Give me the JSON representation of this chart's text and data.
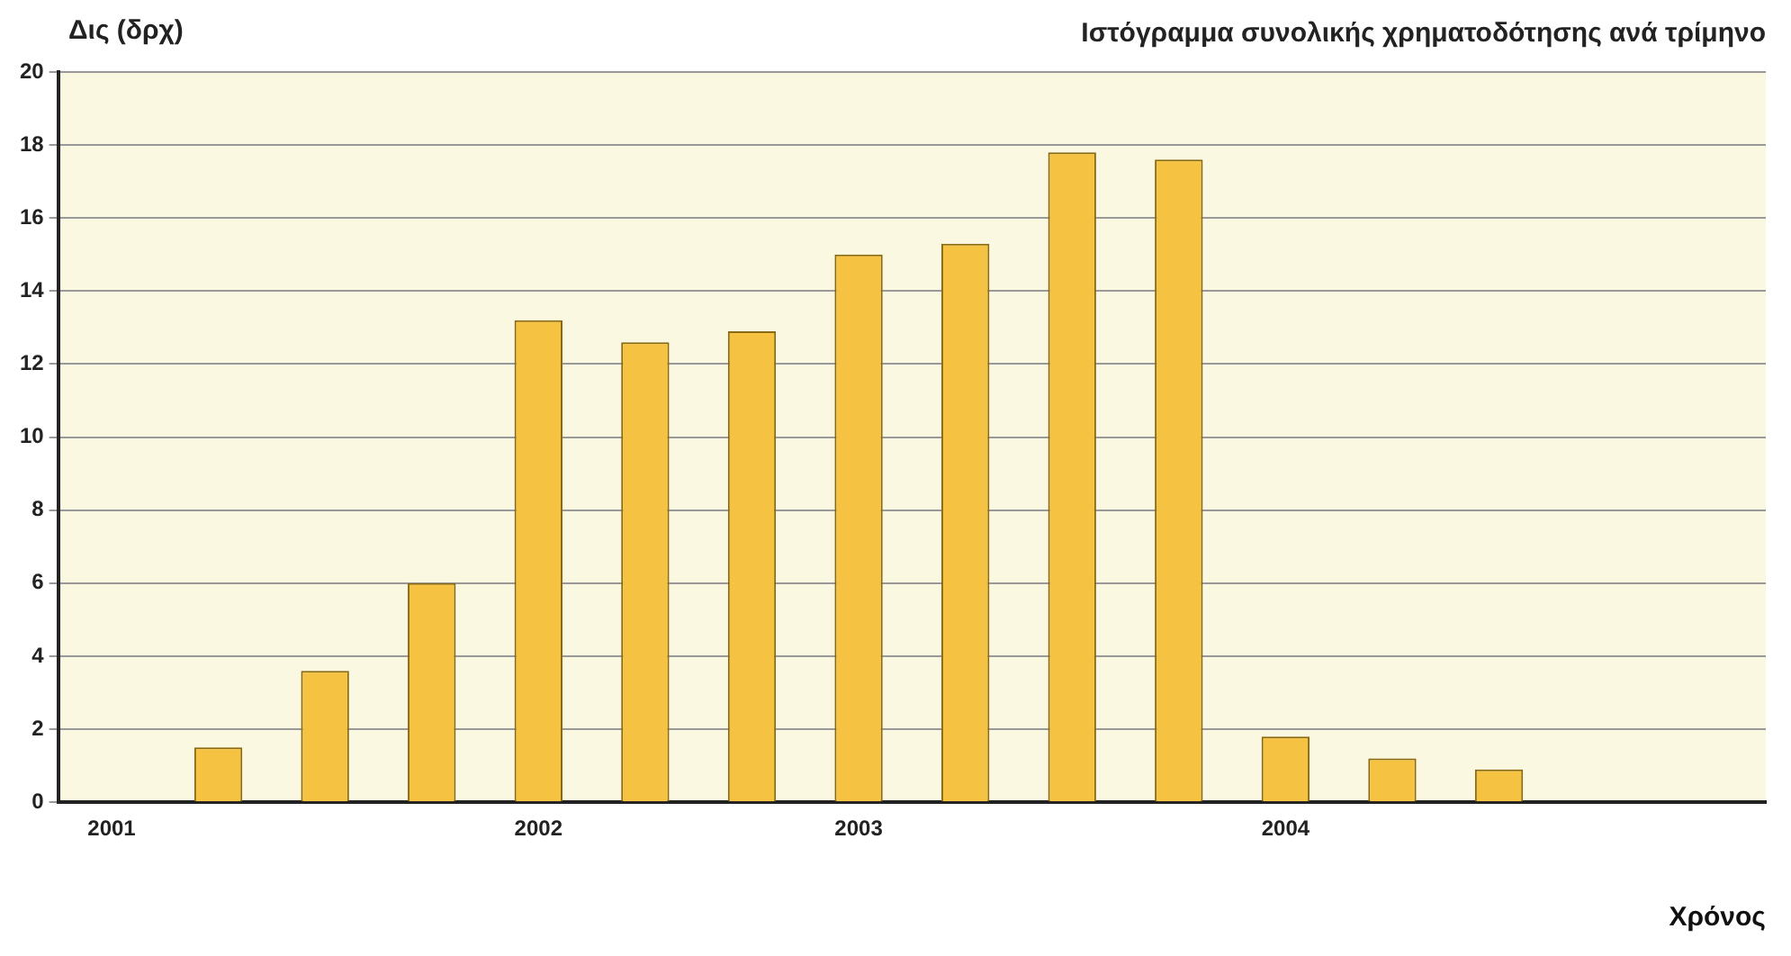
{
  "chart_data": {
    "type": "bar",
    "title": "Ιστόγραμμα συνολικής χρηματοδότησης ανά τρίμηνο",
    "ylabel": "Δις (δρχ)",
    "xlabel": "Χρόνος",
    "categories": [
      "2001",
      null,
      null,
      null,
      "2002",
      null,
      null,
      "2003",
      null,
      null,
      null,
      "2004",
      null,
      null,
      null,
      null
    ],
    "values": [
      null,
      1.5,
      3.6,
      6.0,
      13.2,
      12.6,
      12.9,
      15.0,
      15.3,
      17.8,
      17.6,
      1.8,
      1.2,
      0.9,
      null,
      null
    ],
    "color": "#f5c242",
    "ylim": [
      0,
      20
    ],
    "yticks": [
      0,
      2,
      4,
      6,
      8,
      10,
      12,
      14,
      16,
      18,
      20
    ],
    "grid": "y",
    "legend": false
  }
}
